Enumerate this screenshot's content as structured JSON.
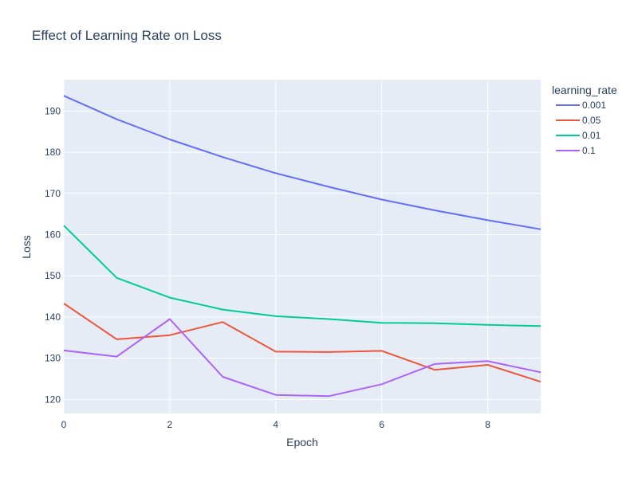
{
  "chart_data": {
    "type": "line",
    "title": "Effect of Learning Rate on Loss",
    "xlabel": "Epoch",
    "ylabel": "Loss",
    "x": [
      0,
      1,
      2,
      3,
      4,
      5,
      6,
      7,
      8,
      9
    ],
    "xlim": [
      0,
      9
    ],
    "ylim": [
      116.6,
      197.6
    ],
    "xticks": [
      0,
      2,
      4,
      6,
      8
    ],
    "yticks": [
      120,
      130,
      140,
      150,
      160,
      170,
      180,
      190
    ],
    "grid": true,
    "legend_title": "learning_rate",
    "legend_position": "right",
    "plot_background": "#e5ecf6",
    "series": [
      {
        "name": "0.001",
        "color": "#636efa",
        "values": [
          193.7,
          188.0,
          183.1,
          178.8,
          174.9,
          171.6,
          168.5,
          165.9,
          163.5,
          161.3
        ]
      },
      {
        "name": "0.05",
        "color": "#ef553b",
        "values": [
          143.3,
          134.6,
          135.6,
          138.8,
          131.6,
          131.5,
          131.8,
          127.2,
          128.4,
          124.3
        ]
      },
      {
        "name": "0.01",
        "color": "#00cc96",
        "values": [
          162.2,
          149.5,
          144.7,
          141.8,
          140.2,
          139.5,
          138.6,
          138.5,
          138.1,
          137.8
        ]
      },
      {
        "name": "0.1",
        "color": "#ab63fa",
        "values": [
          131.9,
          130.4,
          139.5,
          125.5,
          121.1,
          120.8,
          123.7,
          128.6,
          129.3,
          126.6
        ]
      }
    ]
  }
}
